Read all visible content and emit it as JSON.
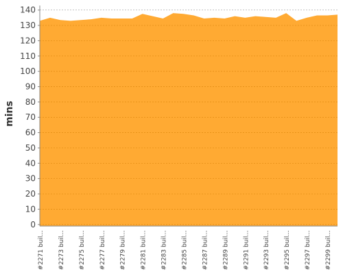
{
  "chart_data": {
    "type": "area",
    "y_label": "mins",
    "categories": [
      "#2271 buil...",
      null,
      "#2273 buil...",
      null,
      "#2275 buil...",
      null,
      "#2277 buil...",
      null,
      "#2279 buil...",
      null,
      "#2281 buil...",
      null,
      "#2283 buil...",
      null,
      "#2285 buil...",
      null,
      "#2287 buil...",
      null,
      "#2289 buil...",
      null,
      "#2291 buil...",
      null,
      "#2293 buil...",
      null,
      "#2295 buil...",
      null,
      "#2297 buil...",
      null,
      "#2299 buil...",
      null
    ],
    "values": [
      133,
      135,
      133.5,
      133,
      133.5,
      134,
      135,
      134.5,
      134.5,
      134.5,
      137.5,
      136,
      134.5,
      138,
      137.5,
      136.5,
      134.5,
      135,
      134.5,
      136,
      135,
      136,
      135.5,
      135,
      138,
      133,
      135,
      136.5,
      136.5,
      137
    ],
    "color": "#ffaa33",
    "ylim": [
      -1,
      143
    ],
    "yticks": [
      0,
      10,
      20,
      30,
      40,
      50,
      60,
      70,
      80,
      90,
      100,
      110,
      120,
      130,
      140
    ],
    "grid": true
  }
}
